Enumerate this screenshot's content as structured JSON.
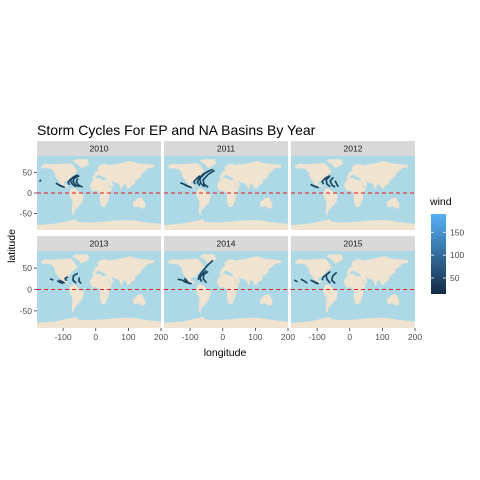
{
  "chart_data": {
    "type": "map-track-facets",
    "title": "Storm Cycles For EP and NA Basins By Year",
    "xlabel": "longitude",
    "ylabel": "latitude",
    "xlim": [
      -180,
      200
    ],
    "ylim": [
      -90,
      90
    ],
    "x_ticks": [
      -100,
      0,
      100,
      200
    ],
    "y_ticks": [
      -50,
      0,
      50
    ],
    "equator_line": {
      "y": 0,
      "color": "#e41a1c",
      "style": "dashed"
    },
    "colors": {
      "ocean": "#add8e6",
      "land": "#f0e3d0",
      "strip": "#d9d9d9",
      "track": "#16425f"
    },
    "legend": {
      "title": "wind",
      "breaks": [
        50,
        100,
        150
      ],
      "range": [
        15,
        190
      ],
      "color_low": "#132b43",
      "color_high": "#56b1f7"
    },
    "facets": [
      {
        "label": "2010"
      },
      {
        "label": "2011"
      },
      {
        "label": "2012"
      },
      {
        "label": "2013"
      },
      {
        "label": "2014"
      },
      {
        "label": "2015"
      }
    ]
  }
}
